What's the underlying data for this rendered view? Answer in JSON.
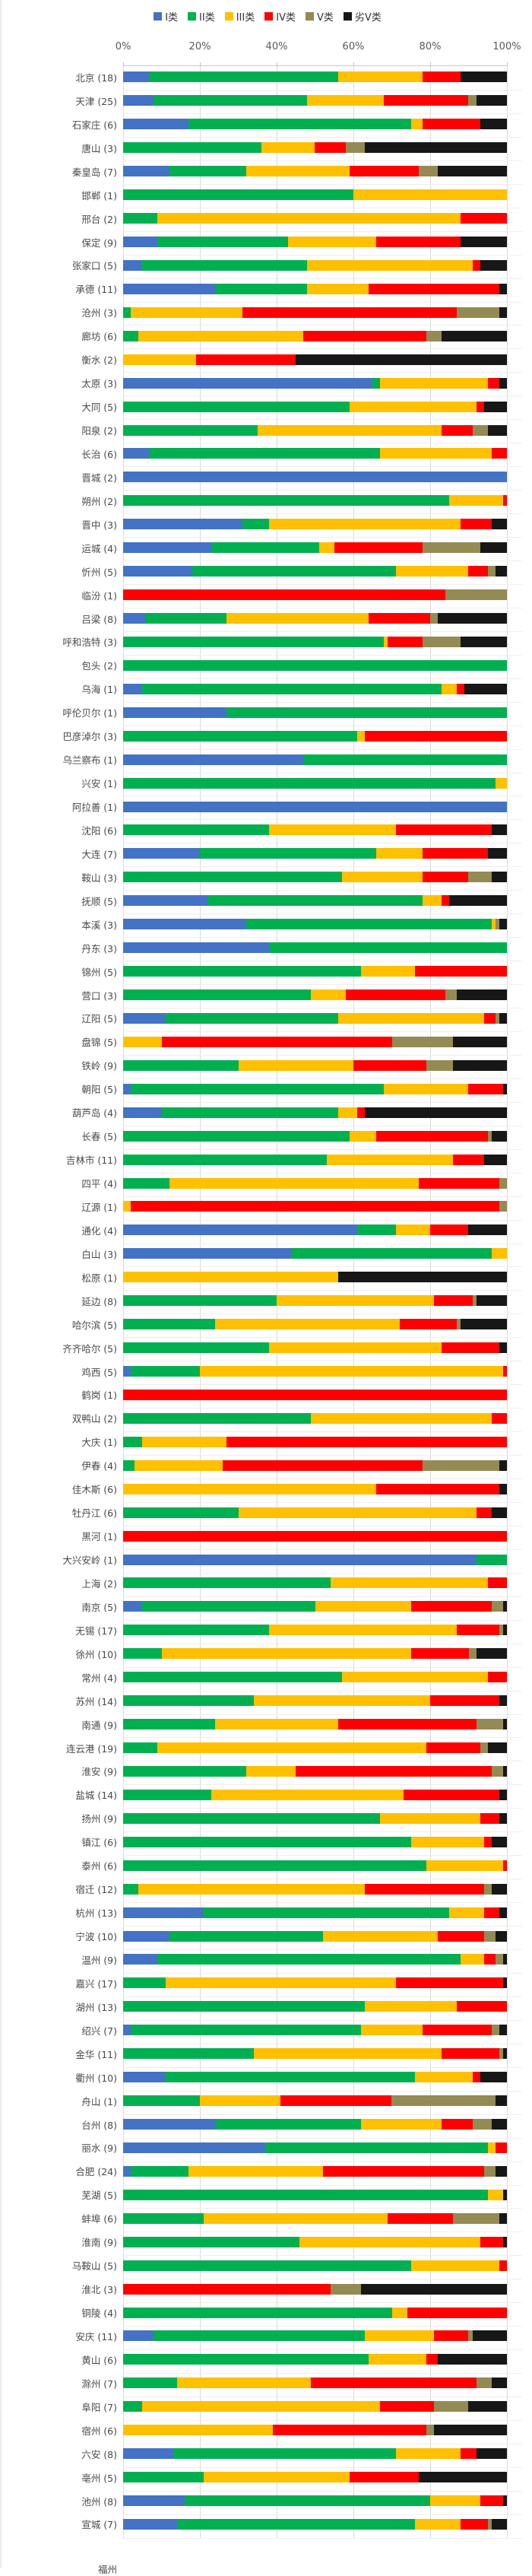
{
  "chart_data": {
    "type": "bar",
    "orientation": "horizontal",
    "stacked": true,
    "unit": "percent",
    "grid": true,
    "legend_position": "top",
    "x_ticks": [
      "0%",
      "20%",
      "40%",
      "60%",
      "80%",
      "100%"
    ],
    "xlim": [
      0,
      100
    ],
    "legend": [
      {
        "label": "I类",
        "color": "#4472C4"
      },
      {
        "label": "II类",
        "color": "#00B050"
      },
      {
        "label": "III类",
        "color": "#FFC000"
      },
      {
        "label": "IV类",
        "color": "#FE0000"
      },
      {
        "label": "V类",
        "color": "#948A54"
      },
      {
        "label": "劣V类",
        "color": "#171717"
      }
    ],
    "value_order": [
      "I类",
      "II类",
      "III类",
      "IV类",
      "V类",
      "劣V类"
    ],
    "rows": [
      {
        "city": "北京",
        "count": 18,
        "values": [
          7,
          49,
          22,
          10,
          0,
          12
        ]
      },
      {
        "city": "天津",
        "count": 25,
        "values": [
          8,
          40,
          20,
          22,
          2,
          8
        ]
      },
      {
        "city": "石家庄",
        "count": 6,
        "values": [
          17,
          58,
          3,
          15,
          0,
          7
        ]
      },
      {
        "city": "唐山",
        "count": 3,
        "values": [
          0,
          36,
          14,
          8,
          5,
          37
        ]
      },
      {
        "city": "秦皇岛",
        "count": 7,
        "values": [
          12,
          20,
          27,
          18,
          5,
          18
        ]
      },
      {
        "city": "邯郸",
        "count": 1,
        "values": [
          0,
          60,
          40,
          0,
          0,
          0
        ]
      },
      {
        "city": "邢台",
        "count": 2,
        "values": [
          0,
          9,
          79,
          12,
          0,
          0
        ]
      },
      {
        "city": "保定",
        "count": 9,
        "values": [
          9,
          34,
          23,
          22,
          0,
          12
        ]
      },
      {
        "city": "张家口",
        "count": 5,
        "values": [
          5,
          43,
          43,
          2,
          0,
          7
        ]
      },
      {
        "city": "承德",
        "count": 11,
        "values": [
          24,
          24,
          16,
          34,
          0,
          2
        ]
      },
      {
        "city": "沧州",
        "count": 3,
        "values": [
          0,
          2,
          29,
          56,
          11,
          2
        ]
      },
      {
        "city": "廊坊",
        "count": 6,
        "values": [
          0,
          4,
          43,
          32,
          4,
          17
        ]
      },
      {
        "city": "衡水",
        "count": 2,
        "values": [
          0,
          0,
          19,
          26,
          0,
          55
        ]
      },
      {
        "city": "太原",
        "count": 3,
        "values": [
          65,
          2,
          28,
          3,
          0,
          2
        ]
      },
      {
        "city": "大同",
        "count": 5,
        "values": [
          0,
          59,
          33,
          2,
          0,
          6
        ]
      },
      {
        "city": "阳泉",
        "count": 2,
        "values": [
          0,
          35,
          48,
          8,
          4,
          5
        ]
      },
      {
        "city": "长治",
        "count": 6,
        "values": [
          7,
          60,
          29,
          4,
          0,
          0
        ]
      },
      {
        "city": "晋城",
        "count": 2,
        "values": [
          100,
          0,
          0,
          0,
          0,
          0
        ]
      },
      {
        "city": "朔州",
        "count": 2,
        "values": [
          0,
          85,
          14,
          1,
          0,
          0
        ]
      },
      {
        "city": "晋中",
        "count": 3,
        "values": [
          31,
          7,
          50,
          8,
          0,
          4
        ]
      },
      {
        "city": "运城",
        "count": 4,
        "values": [
          23,
          28,
          4,
          23,
          15,
          7
        ]
      },
      {
        "city": "忻州",
        "count": 5,
        "values": [
          18,
          53,
          19,
          5,
          2,
          3
        ]
      },
      {
        "city": "临汾",
        "count": 1,
        "values": [
          0,
          0,
          0,
          84,
          16,
          0
        ]
      },
      {
        "city": "吕梁",
        "count": 8,
        "values": [
          6,
          21,
          37,
          16,
          2,
          18
        ]
      },
      {
        "city": "呼和浩特",
        "count": 3,
        "values": [
          0,
          68,
          1,
          9,
          10,
          12
        ]
      },
      {
        "city": "包头",
        "count": 2,
        "values": [
          0,
          100,
          0,
          0,
          0,
          0
        ]
      },
      {
        "city": "乌海",
        "count": 1,
        "values": [
          5,
          78,
          4,
          2,
          0,
          11
        ]
      },
      {
        "city": "呼伦贝尔",
        "count": 1,
        "values": [
          27,
          73,
          0,
          0,
          0,
          0
        ]
      },
      {
        "city": "巴彦淖尔",
        "count": 3,
        "values": [
          0,
          61,
          2,
          37,
          0,
          0
        ]
      },
      {
        "city": "乌兰察布",
        "count": 1,
        "values": [
          47,
          53,
          0,
          0,
          0,
          0
        ]
      },
      {
        "city": "兴安",
        "count": 1,
        "values": [
          0,
          97,
          3,
          0,
          0,
          0
        ]
      },
      {
        "city": "阿拉善",
        "count": 1,
        "values": [
          100,
          0,
          0,
          0,
          0,
          0
        ]
      },
      {
        "city": "沈阳",
        "count": 6,
        "values": [
          0,
          38,
          33,
          25,
          0,
          4
        ]
      },
      {
        "city": "大连",
        "count": 7,
        "values": [
          20,
          46,
          12,
          17,
          0,
          5
        ]
      },
      {
        "city": "鞍山",
        "count": 3,
        "values": [
          0,
          57,
          21,
          12,
          6,
          4
        ]
      },
      {
        "city": "抚顺",
        "count": 5,
        "values": [
          22,
          56,
          5,
          2,
          0,
          15
        ]
      },
      {
        "city": "本溪",
        "count": 3,
        "values": [
          32,
          64,
          1,
          0,
          1,
          2
        ]
      },
      {
        "city": "丹东",
        "count": 3,
        "values": [
          38,
          62,
          0,
          0,
          0,
          0
        ]
      },
      {
        "city": "锦州",
        "count": 5,
        "values": [
          0,
          62,
          14,
          24,
          0,
          0
        ]
      },
      {
        "city": "营口",
        "count": 3,
        "values": [
          0,
          49,
          9,
          26,
          3,
          13
        ]
      },
      {
        "city": "辽阳",
        "count": 5,
        "values": [
          11,
          45,
          38,
          3,
          1,
          2
        ]
      },
      {
        "city": "盘锦",
        "count": 5,
        "values": [
          0,
          0,
          10,
          60,
          16,
          14
        ]
      },
      {
        "city": "铁岭",
        "count": 9,
        "values": [
          0,
          30,
          30,
          19,
          7,
          14
        ]
      },
      {
        "city": "朝阳",
        "count": 5,
        "values": [
          2,
          66,
          22,
          9,
          0,
          1
        ]
      },
      {
        "city": "葫芦岛",
        "count": 4,
        "values": [
          10,
          46,
          5,
          2,
          0,
          37
        ]
      },
      {
        "city": "长春",
        "count": 5,
        "values": [
          0,
          59,
          7,
          29,
          1,
          4
        ]
      },
      {
        "city": "吉林市",
        "count": 11,
        "values": [
          0,
          53,
          33,
          8,
          0,
          6
        ]
      },
      {
        "city": "四平",
        "count": 4,
        "values": [
          0,
          12,
          65,
          21,
          2,
          0
        ]
      },
      {
        "city": "辽源",
        "count": 1,
        "values": [
          0,
          0,
          2,
          96,
          2,
          0
        ]
      },
      {
        "city": "通化",
        "count": 4,
        "values": [
          61,
          10,
          9,
          10,
          0,
          10
        ]
      },
      {
        "city": "白山",
        "count": 3,
        "values": [
          44,
          52,
          4,
          0,
          0,
          0
        ]
      },
      {
        "city": "松原",
        "count": 1,
        "values": [
          0,
          0,
          56,
          0,
          0,
          44
        ]
      },
      {
        "city": "延边",
        "count": 8,
        "values": [
          0,
          40,
          41,
          10,
          1,
          8
        ]
      },
      {
        "city": "哈尔滨",
        "count": 5,
        "values": [
          0,
          24,
          48,
          15,
          1,
          12
        ]
      },
      {
        "city": "齐齐哈尔",
        "count": 5,
        "values": [
          0,
          38,
          45,
          15,
          0,
          2
        ]
      },
      {
        "city": "鸡西",
        "count": 5,
        "values": [
          2,
          18,
          79,
          1,
          0,
          0
        ]
      },
      {
        "city": "鹤岗",
        "count": 1,
        "values": [
          0,
          0,
          0,
          100,
          0,
          0
        ]
      },
      {
        "city": "双鸭山",
        "count": 2,
        "values": [
          0,
          49,
          47,
          4,
          0,
          0
        ]
      },
      {
        "city": "大庆",
        "count": 1,
        "values": [
          0,
          5,
          22,
          73,
          0,
          0
        ]
      },
      {
        "city": "伊春",
        "count": 4,
        "values": [
          0,
          3,
          23,
          52,
          20,
          2
        ]
      },
      {
        "city": "佳木斯",
        "count": 6,
        "values": [
          0,
          0,
          66,
          32,
          0,
          2
        ]
      },
      {
        "city": "牡丹江",
        "count": 6,
        "values": [
          0,
          30,
          62,
          4,
          0,
          4
        ]
      },
      {
        "city": "黑河",
        "count": 1,
        "values": [
          0,
          0,
          0,
          100,
          0,
          0
        ]
      },
      {
        "city": "大兴安岭",
        "count": 1,
        "values": [
          92,
          8,
          0,
          0,
          0,
          0
        ]
      },
      {
        "city": "上海",
        "count": 2,
        "values": [
          0,
          54,
          41,
          5,
          0,
          0
        ]
      },
      {
        "city": "南京",
        "count": 5,
        "values": [
          5,
          45,
          25,
          21,
          3,
          1
        ]
      },
      {
        "city": "无锡",
        "count": 17,
        "values": [
          0,
          38,
          49,
          11,
          1,
          1
        ]
      },
      {
        "city": "徐州",
        "count": 10,
        "values": [
          0,
          10,
          65,
          15,
          2,
          8
        ]
      },
      {
        "city": "常州",
        "count": 4,
        "values": [
          0,
          57,
          38,
          5,
          0,
          0
        ]
      },
      {
        "city": "苏州",
        "count": 14,
        "values": [
          0,
          34,
          46,
          18,
          0,
          2
        ]
      },
      {
        "city": "南通",
        "count": 9,
        "values": [
          0,
          24,
          32,
          36,
          7,
          1
        ]
      },
      {
        "city": "连云港",
        "count": 19,
        "values": [
          0,
          9,
          70,
          14,
          2,
          5
        ]
      },
      {
        "city": "淮安",
        "count": 9,
        "values": [
          0,
          32,
          13,
          51,
          3,
          1
        ]
      },
      {
        "city": "盐城",
        "count": 14,
        "values": [
          0,
          23,
          50,
          25,
          0,
          2
        ]
      },
      {
        "city": "扬州",
        "count": 9,
        "values": [
          0,
          67,
          26,
          5,
          0,
          2
        ]
      },
      {
        "city": "镇江",
        "count": 6,
        "values": [
          0,
          75,
          19,
          2,
          0,
          4
        ]
      },
      {
        "city": "泰州",
        "count": 6,
        "values": [
          0,
          79,
          20,
          1,
          0,
          0
        ]
      },
      {
        "city": "宿迁",
        "count": 12,
        "values": [
          0,
          4,
          59,
          31,
          2,
          4
        ]
      },
      {
        "city": "杭州",
        "count": 13,
        "values": [
          21,
          64,
          9,
          4,
          0,
          2
        ]
      },
      {
        "city": "宁波",
        "count": 10,
        "values": [
          12,
          40,
          30,
          12,
          3,
          3
        ]
      },
      {
        "city": "温州",
        "count": 9,
        "values": [
          9,
          79,
          6,
          3,
          2,
          1
        ]
      },
      {
        "city": "嘉兴",
        "count": 17,
        "values": [
          0,
          11,
          60,
          28,
          0,
          1
        ]
      },
      {
        "city": "湖州",
        "count": 13,
        "values": [
          0,
          63,
          24,
          13,
          0,
          0
        ]
      },
      {
        "city": "绍兴",
        "count": 7,
        "values": [
          2,
          60,
          16,
          18,
          2,
          2
        ]
      },
      {
        "city": "金华",
        "count": 11,
        "values": [
          0,
          34,
          49,
          15,
          1,
          1
        ]
      },
      {
        "city": "衢州",
        "count": 10,
        "values": [
          11,
          65,
          15,
          2,
          0,
          7
        ]
      },
      {
        "city": "舟山",
        "count": 1,
        "values": [
          0,
          20,
          21,
          29,
          27,
          3
        ]
      },
      {
        "city": "台州",
        "count": 8,
        "values": [
          24,
          38,
          21,
          8,
          5,
          4
        ]
      },
      {
        "city": "丽水",
        "count": 9,
        "values": [
          37,
          58,
          2,
          3,
          0,
          0
        ]
      },
      {
        "city": "合肥",
        "count": 24,
        "values": [
          2,
          15,
          35,
          42,
          3,
          3
        ]
      },
      {
        "city": "芜湖",
        "count": 5,
        "values": [
          0,
          95,
          4,
          0,
          0,
          1
        ]
      },
      {
        "city": "蚌埠",
        "count": 6,
        "values": [
          0,
          21,
          48,
          17,
          12,
          2
        ]
      },
      {
        "city": "淮南",
        "count": 9,
        "values": [
          0,
          46,
          47,
          6,
          0,
          1
        ]
      },
      {
        "city": "马鞍山",
        "count": 5,
        "values": [
          0,
          75,
          23,
          2,
          0,
          0
        ]
      },
      {
        "city": "淮北",
        "count": 3,
        "values": [
          0,
          0,
          0,
          54,
          8,
          38
        ]
      },
      {
        "city": "铜陵",
        "count": 4,
        "values": [
          0,
          70,
          4,
          26,
          0,
          0
        ]
      },
      {
        "city": "安庆",
        "count": 11,
        "values": [
          8,
          55,
          18,
          9,
          1,
          9
        ]
      },
      {
        "city": "黄山",
        "count": 6,
        "values": [
          0,
          64,
          15,
          3,
          0,
          18
        ]
      },
      {
        "city": "滁州",
        "count": 7,
        "values": [
          0,
          14,
          35,
          43,
          4,
          4
        ]
      },
      {
        "city": "阜阳",
        "count": 7,
        "values": [
          0,
          5,
          62,
          14,
          9,
          10
        ]
      },
      {
        "city": "宿州",
        "count": 6,
        "values": [
          0,
          0,
          39,
          40,
          2,
          19
        ]
      },
      {
        "city": "六安",
        "count": 8,
        "values": [
          13,
          58,
          17,
          4,
          0,
          8
        ]
      },
      {
        "city": "亳州",
        "count": 5,
        "values": [
          0,
          21,
          38,
          18,
          0,
          23
        ]
      },
      {
        "city": "池州",
        "count": 8,
        "values": [
          16,
          64,
          13,
          6,
          0,
          1
        ]
      },
      {
        "city": "宣城",
        "count": 7,
        "values": [
          14,
          62,
          12,
          7,
          1,
          4
        ]
      }
    ],
    "clipped_bottom_label": "福州"
  },
  "layout_colors": {
    "gridline": "#d9d9d9",
    "axis_text": "#595959",
    "label_text": "#4a4a4a"
  }
}
